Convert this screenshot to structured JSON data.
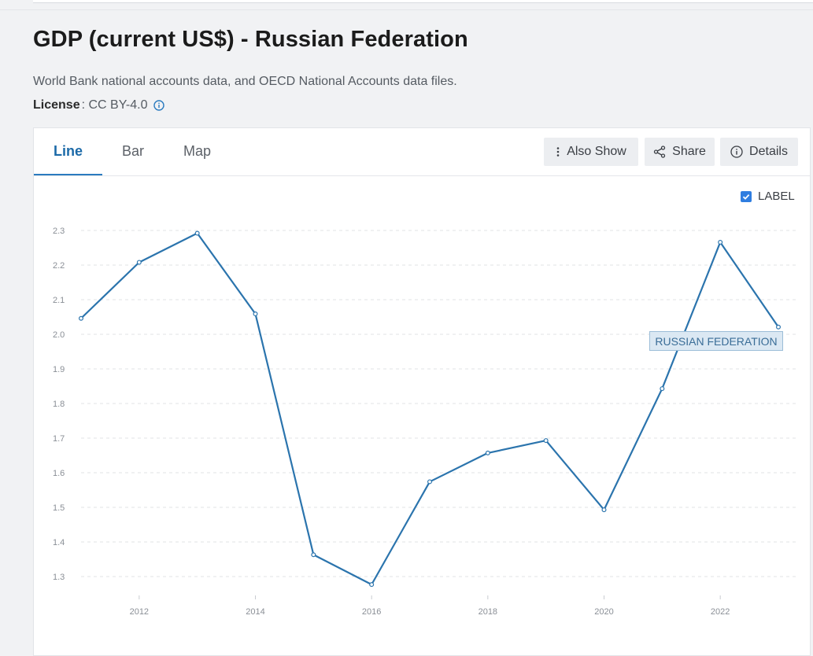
{
  "page": {
    "title": "GDP (current US$) - Russian Federation",
    "source": "World Bank national accounts data, and OECD National Accounts data files.",
    "license_label": "License",
    "license_value": ": CC BY-4.0"
  },
  "tabs": [
    {
      "label": "Line",
      "active": true
    },
    {
      "label": "Bar",
      "active": false
    },
    {
      "label": "Map",
      "active": false
    }
  ],
  "toolbar": {
    "also_show": "Also Show",
    "share": "Share",
    "details": "Details"
  },
  "label_toggle": {
    "text": "LABEL",
    "checked": true
  },
  "icons": {
    "info": "info-circle-icon",
    "also_show": "vertical-ellipsis-icon",
    "share": "share-icon",
    "details": "info-circle-icon",
    "checkbox": "checkmark-icon"
  },
  "colors": {
    "accent": "#1c6aa8",
    "line": "#2b74ad",
    "checkbox": "#2f7de0",
    "tag_bg": "#dbe8f3",
    "tag_border": "#9cbdd8"
  },
  "chart_data": {
    "type": "line",
    "title": "",
    "xlabel": "",
    "ylabel": "",
    "x": [
      2011,
      2012,
      2013,
      2014,
      2015,
      2016,
      2017,
      2018,
      2019,
      2020,
      2021,
      2022,
      2023
    ],
    "series": [
      {
        "name": "RUSSIAN FEDERATION",
        "values": [
          2.046,
          2.208,
          2.292,
          2.059,
          1.363,
          1.277,
          1.574,
          1.657,
          1.693,
          1.493,
          1.843,
          2.266,
          2.021
        ]
      }
    ],
    "x_ticks": [
      "2012",
      "2014",
      "2016",
      "2018",
      "2020",
      "2022"
    ],
    "y_ticks": [
      "1.3",
      "1.4",
      "1.5",
      "1.6",
      "1.7",
      "1.8",
      "1.9",
      "2.0",
      "2.1",
      "2.2",
      "2.3"
    ],
    "ylim": [
      1.3,
      2.3
    ],
    "grid": "horizontal dashed",
    "legend": "label tag at right"
  }
}
